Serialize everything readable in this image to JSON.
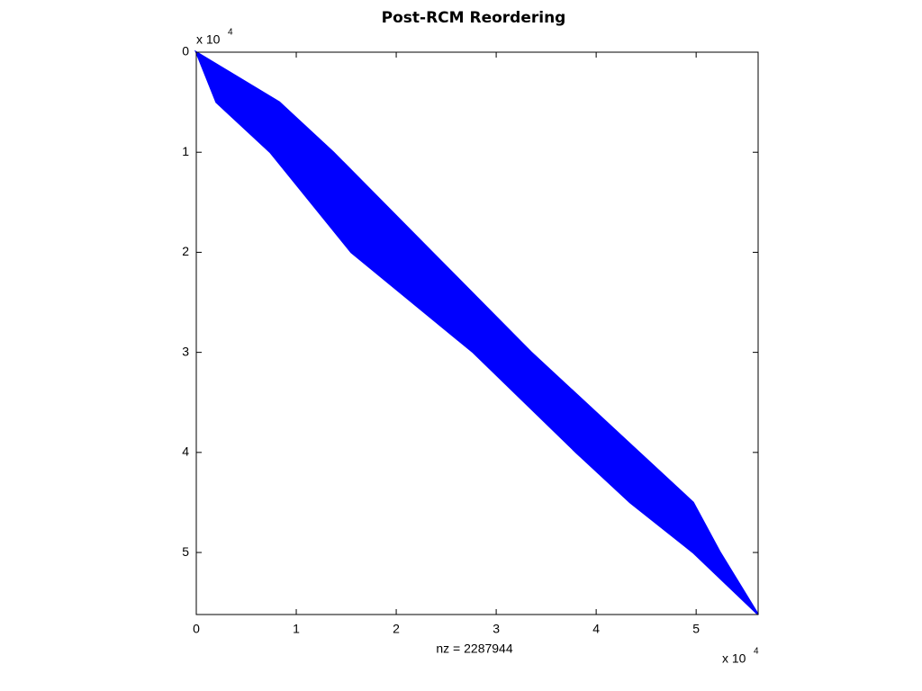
{
  "chart_data": {
    "type": "spy",
    "title": "Post-RCM Reordering",
    "x_label": "nz = 2287944",
    "x_scale_label": {
      "base": "x 10",
      "exponent": "4"
    },
    "y_scale_label": {
      "base": "x 10",
      "exponent": "4"
    },
    "color": "#0000ff",
    "xlim": [
      0,
      56200
    ],
    "ylim": [
      0,
      56200
    ],
    "xticks": [
      {
        "value": 0,
        "label": "0"
      },
      {
        "value": 10000,
        "label": "1"
      },
      {
        "value": 20000,
        "label": "2"
      },
      {
        "value": 30000,
        "label": "3"
      },
      {
        "value": 40000,
        "label": "4"
      },
      {
        "value": 50000,
        "label": "5"
      }
    ],
    "yticks": [
      {
        "value": 0,
        "label": "0"
      },
      {
        "value": 10000,
        "label": "1"
      },
      {
        "value": 20000,
        "label": "2"
      },
      {
        "value": 30000,
        "label": "3"
      },
      {
        "value": 40000,
        "label": "4"
      },
      {
        "value": 50000,
        "label": "5"
      }
    ],
    "band": {
      "rows": [
        0,
        5000,
        10000,
        20000,
        30000,
        40000,
        45000,
        50000,
        56200
      ],
      "lower": [
        0,
        2000,
        7400,
        15500,
        27700,
        38000,
        43400,
        49700,
        56200
      ],
      "upper": [
        0,
        8300,
        13700,
        23600,
        33500,
        44300,
        49700,
        52400,
        56200
      ]
    }
  }
}
